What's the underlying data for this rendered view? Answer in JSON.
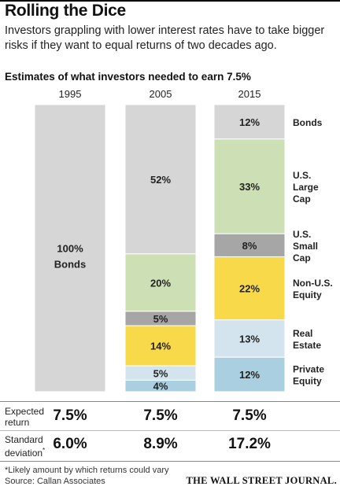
{
  "headline": "Rolling the Dice",
  "dek": "Investors grappling with lower interest rates have to take bigger risks if they want to equal returns of two decades ago.",
  "subhead": "Estimates of what investors needed to earn 7.5%",
  "chart_data": {
    "type": "bar",
    "stacked": true,
    "categories": [
      "1995",
      "2005",
      "2015"
    ],
    "series": [
      {
        "name": "Bonds",
        "color": "#d6d6d6",
        "values": [
          100,
          52,
          12
        ]
      },
      {
        "name": "U.S. Large Cap",
        "color": "#cddfb5",
        "values": [
          0,
          20,
          33
        ]
      },
      {
        "name": "U.S. Small Cap",
        "color": "#a6a6a6",
        "values": [
          0,
          5,
          8
        ]
      },
      {
        "name": "Non-U.S. Equity",
        "color": "#f8d94a",
        "values": [
          0,
          14,
          22
        ]
      },
      {
        "name": "Real Estate",
        "color": "#d3e4ee",
        "values": [
          0,
          5,
          13
        ]
      },
      {
        "name": "Private Equity",
        "color": "#a9cfe1",
        "values": [
          0,
          4,
          12
        ]
      }
    ],
    "labels": {
      "1995": [
        "100%",
        "",
        "",
        "",
        "",
        ""
      ],
      "2005": [
        "52%",
        "20%",
        "5%",
        "14%",
        "5%",
        "4%"
      ],
      "2015": [
        "12%",
        "33%",
        "8%",
        "22%",
        "13%",
        "12%"
      ]
    },
    "bar_inner_label_1995": "Bonds",
    "legend": [
      {
        "lines": [
          "Bonds"
        ],
        "series": 0
      },
      {
        "lines": [
          "U.S.",
          "Large",
          "Cap"
        ],
        "series": 1
      },
      {
        "lines": [
          "U.S.",
          "Small",
          "Cap"
        ],
        "series": 2
      },
      {
        "lines": [
          "Non-U.S.",
          "Equity"
        ],
        "series": 3
      },
      {
        "lines": [
          "Real",
          "Estate"
        ],
        "series": 4
      },
      {
        "lines": [
          "Private",
          "Equity"
        ],
        "series": 5
      }
    ],
    "ylim": [
      0,
      100
    ]
  },
  "stats": {
    "expected_label_1": "Expected",
    "expected_label_2": "return",
    "expected": [
      "7.5%",
      "7.5%",
      "7.5%"
    ],
    "stdev_label_1": "Standard",
    "stdev_label_2": "deviation",
    "stdev_marker": "*",
    "stdev": [
      "6.0%",
      "8.9%",
      "17.2%"
    ]
  },
  "footnote": "*Likely amount by which returns could vary",
  "source": "Source: Callan Associates",
  "credit": "THE WALL STREET JOURNAL."
}
